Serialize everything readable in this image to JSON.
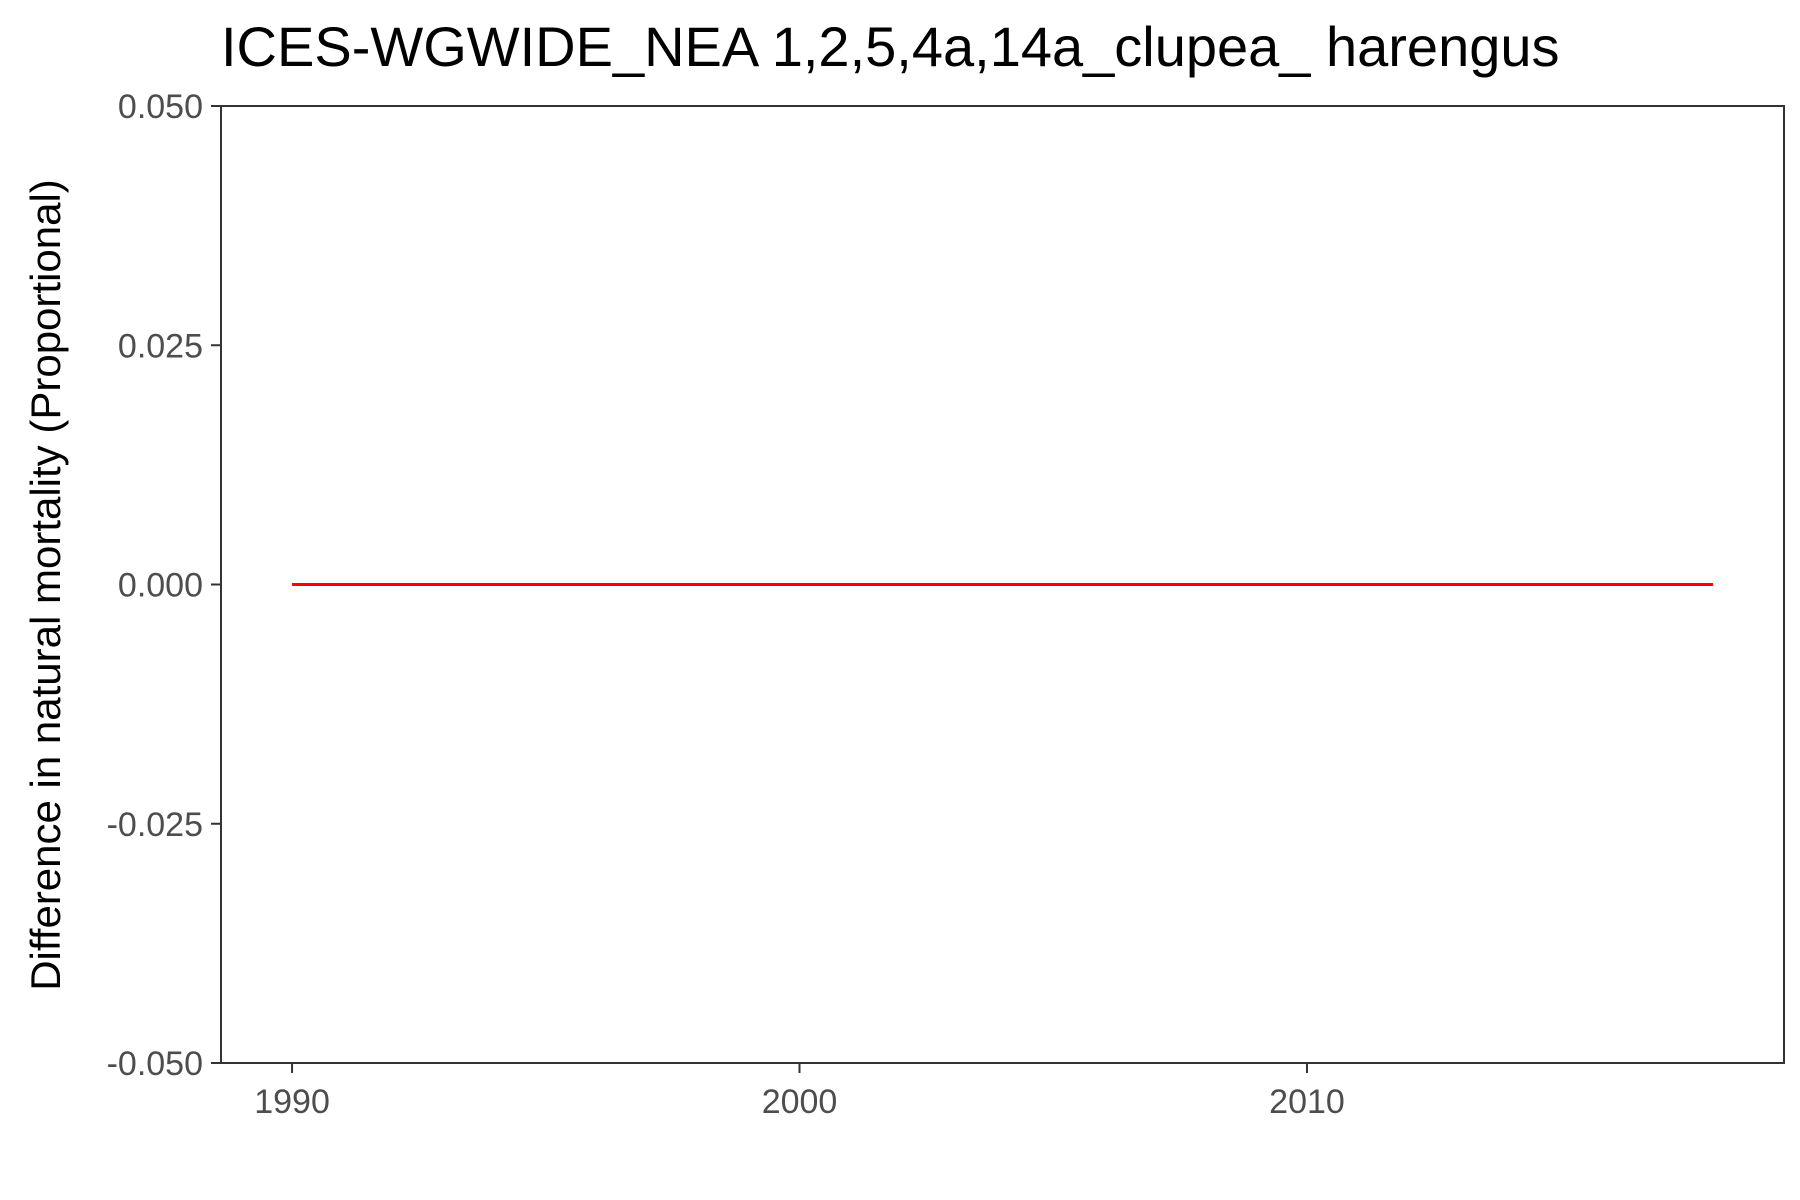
{
  "chart_data": {
    "type": "line",
    "title": "ICES-WGWIDE_NEA 1,2,5,4a,14a_clupea_ harengus",
    "xlabel": "",
    "ylabel": "Difference in natural mortality (Proportional)",
    "xlim": [
      1988.6,
      2019.4
    ],
    "ylim": [
      -0.05,
      0.05
    ],
    "x_ticks": [
      1990,
      2000,
      2010
    ],
    "x_tick_labels": [
      "1990",
      "2000",
      "2010"
    ],
    "y_ticks": [
      -0.05,
      -0.025,
      0,
      0.025,
      0.05
    ],
    "y_tick_labels": [
      "-0.050",
      "-0.025",
      "0.000",
      "0.025",
      "0.050"
    ],
    "grid": false,
    "series": [
      {
        "color": "#ff0000",
        "x": [
          1990,
          1991,
          1992,
          1993,
          1994,
          1995,
          1996,
          1997,
          1998,
          1999,
          2000,
          2001,
          2002,
          2003,
          2004,
          2005,
          2006,
          2007,
          2008,
          2009,
          2010,
          2011,
          2012,
          2013,
          2014,
          2015,
          2016,
          2017,
          2018
        ],
        "values": [
          0,
          0,
          0,
          0,
          0,
          0,
          0,
          0,
          0,
          0,
          0,
          0,
          0,
          0,
          0,
          0,
          0,
          0,
          0,
          0,
          0,
          0,
          0,
          0,
          0,
          0,
          0,
          0,
          0
        ]
      }
    ]
  }
}
